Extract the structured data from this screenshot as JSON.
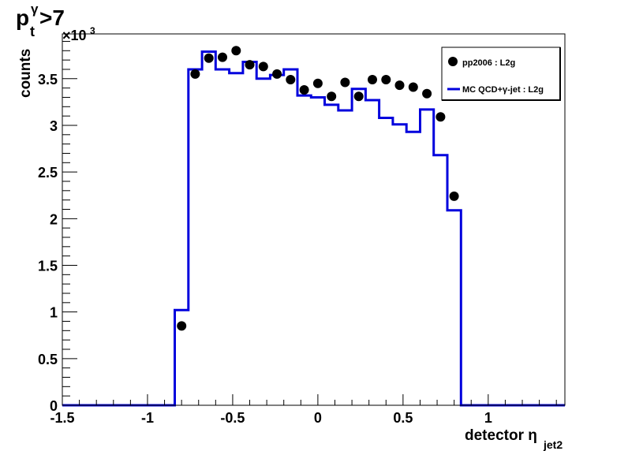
{
  "chart_data": {
    "type": "line",
    "title": {
      "main": "p",
      "sub": "t",
      "sup": "γ",
      "suffix": ">7"
    },
    "ylabel": "counts",
    "xlabel": {
      "main": "detector η",
      "sub": "jet2"
    },
    "y_multiplier": {
      "base": "×10",
      "exp": "3"
    },
    "xlim": [
      -1.5,
      1.45
    ],
    "ylim": [
      0,
      3.98
    ],
    "x_ticks": [
      -1.5,
      -1,
      -0.5,
      0,
      0.5,
      1
    ],
    "x_tick_labels": [
      "-1.5",
      "-1",
      "-0.5",
      "0",
      "0.5",
      "1"
    ],
    "y_ticks": [
      0,
      0.5,
      1,
      1.5,
      2,
      2.5,
      3,
      3.5
    ],
    "y_tick_labels": [
      "0",
      "0.5",
      "1",
      "1.5",
      "2",
      "2.5",
      "3",
      "3.5"
    ],
    "grid": false,
    "legend_position": "top-right",
    "series": [
      {
        "name": "pp2006 : L2g",
        "kind": "points",
        "color": "#000000",
        "x": [
          -0.8,
          -0.72,
          -0.64,
          -0.56,
          -0.48,
          -0.4,
          -0.32,
          -0.24,
          -0.16,
          -0.08,
          0.0,
          0.08,
          0.16,
          0.24,
          0.32,
          0.4,
          0.48,
          0.56,
          0.64,
          0.72,
          0.8
        ],
        "y": [
          0.85,
          3.55,
          3.72,
          3.73,
          3.8,
          3.65,
          3.63,
          3.55,
          3.49,
          3.38,
          3.45,
          3.31,
          3.46,
          3.31,
          3.49,
          3.49,
          3.43,
          3.41,
          3.34,
          3.09,
          2.24
        ]
      },
      {
        "name": "MC QCD+γ-jet : L2g",
        "kind": "histogram",
        "color": "#0000dd",
        "bin_edges": [
          -1.5,
          -0.84,
          -0.76,
          -0.68,
          -0.6,
          -0.52,
          -0.44,
          -0.36,
          -0.28,
          -0.2,
          -0.12,
          -0.04,
          0.04,
          0.12,
          0.2,
          0.28,
          0.36,
          0.44,
          0.52,
          0.6,
          0.68,
          0.76,
          0.84,
          1.45
        ],
        "y": [
          0,
          1.02,
          3.6,
          3.79,
          3.6,
          3.56,
          3.68,
          3.5,
          3.54,
          3.6,
          3.32,
          3.3,
          3.22,
          3.16,
          3.39,
          3.27,
          3.08,
          3.01,
          2.93,
          3.17,
          2.68,
          2.09,
          0
        ]
      }
    ]
  }
}
